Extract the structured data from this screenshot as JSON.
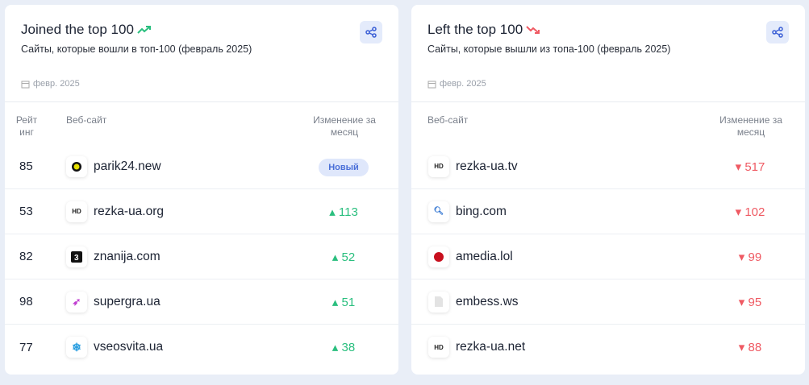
{
  "joined": {
    "title": "Joined the top 100",
    "subtitle": "Сайты, которые вошли в топ-100 (февраль 2025)",
    "date": "февр. 2025",
    "columns": {
      "rank": "Рейт инг",
      "site": "Веб-сайт",
      "change": "Изменение за месяц"
    },
    "rows": [
      {
        "rank": "85",
        "site": "parik24.new",
        "change": "Новый",
        "icon": "parik24-logo"
      },
      {
        "rank": "53",
        "site": "rezka-ua.org",
        "change": "113",
        "icon": "hd-logo"
      },
      {
        "rank": "82",
        "site": "znanija.com",
        "change": "52",
        "icon": "znanija-logo"
      },
      {
        "rank": "98",
        "site": "supergra.ua",
        "change": "51",
        "icon": "supergra-logo"
      },
      {
        "rank": "77",
        "site": "vseosvita.ua",
        "change": "38",
        "icon": "vseosvita-logo"
      }
    ]
  },
  "left": {
    "title": "Left the top 100",
    "subtitle": "Сайты, которые вышли из топа-100 (февраль 2025)",
    "date": "февр. 2025",
    "columns": {
      "site": "Веб-сайт",
      "change": "Изменение за месяц"
    },
    "rows": [
      {
        "site": "rezka-ua.tv",
        "change": "517",
        "icon": "hd-logo"
      },
      {
        "site": "bing.com",
        "change": "102",
        "icon": "search-logo"
      },
      {
        "site": "amedia.lol",
        "change": "99",
        "icon": "amedia-logo"
      },
      {
        "site": "embess.ws",
        "change": "95",
        "icon": "blank-page-icon"
      },
      {
        "site": "rezka-ua.net",
        "change": "88",
        "icon": "hd-logo"
      }
    ]
  },
  "icons": {
    "hd": "HD"
  },
  "colors": {
    "up": "#2bbf7f",
    "down": "#ef5a63",
    "accent": "#4a6fd8"
  }
}
